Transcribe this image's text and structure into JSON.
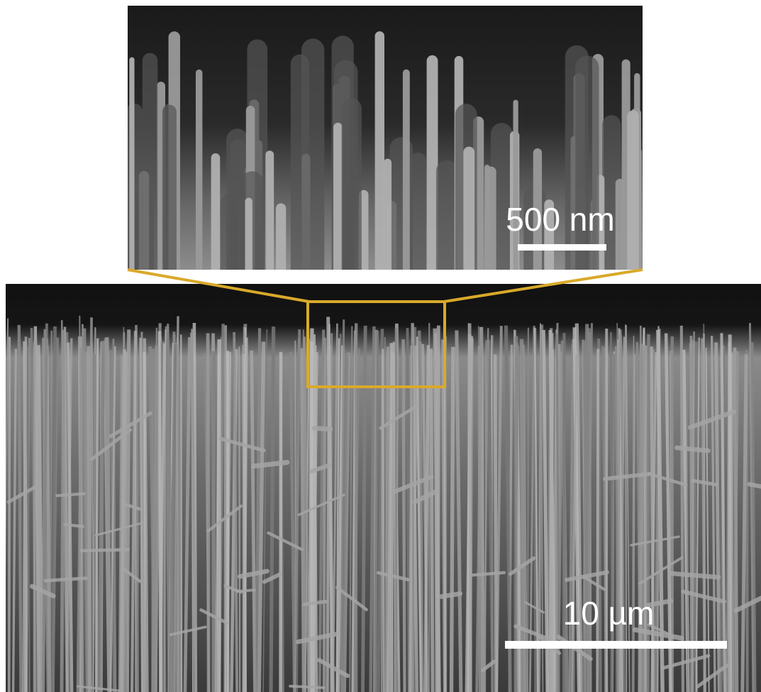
{
  "inset": {
    "scale_label": "500 nm"
  },
  "main": {
    "scale_label": "10 µm"
  }
}
